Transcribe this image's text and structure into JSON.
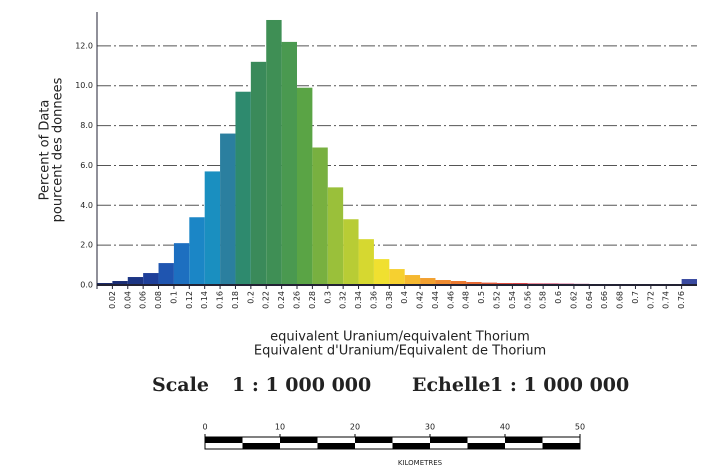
{
  "chart_data": {
    "type": "histogram",
    "y_label_lines": [
      "Percent of Data",
      "pourcent des donnees"
    ],
    "x_label_lines": [
      "equivalent Uranium/equivalent Thorium",
      "Equivalent d'Uranium/Equivalent de Thorium"
    ],
    "bins": [
      0,
      0.02,
      0.04,
      0.06,
      0.08,
      0.1,
      0.12,
      0.14,
      0.16,
      0.18,
      0.2,
      0.22,
      0.24,
      0.26,
      0.28,
      0.3,
      0.32,
      0.34,
      0.36,
      0.38,
      0.4,
      0.42,
      0.44,
      0.46,
      0.48,
      0.5,
      0.52,
      0.54,
      0.56,
      0.58,
      0.6,
      0.62,
      0.64,
      0.66,
      0.68,
      0.7,
      0.72,
      0.74,
      0.76,
      0.78
    ],
    "values": [
      0.1,
      0.2,
      0.4,
      0.6,
      1.1,
      2.1,
      3.4,
      5.7,
      7.6,
      9.7,
      11.2,
      13.3,
      12.2,
      9.9,
      6.9,
      4.9,
      3.3,
      2.3,
      1.3,
      0.8,
      0.5,
      0.35,
      0.25,
      0.2,
      0.15,
      0.12,
      0.1,
      0.1,
      0.08,
      0.08,
      0.07,
      0.06,
      0.05,
      0.05,
      0.05,
      0.04,
      0.04,
      0.04,
      0.3
    ],
    "colors": [
      "#1a2a6c",
      "#1a2d74",
      "#1c3584",
      "#1e3f9a",
      "#1f55b0",
      "#1d6fc0",
      "#1b86c6",
      "#1a8fc0",
      "#2b7f9f",
      "#2e8a6e",
      "#3a8a5a",
      "#3f8f55",
      "#4a9950",
      "#5aa445",
      "#78b040",
      "#9ac03a",
      "#b8cc35",
      "#d6d830",
      "#f0e030",
      "#f6d030",
      "#f5b830",
      "#f2a030",
      "#ee8a30",
      "#ea7830",
      "#e66a35",
      "#e25a3a",
      "#df4e40",
      "#dc4448",
      "#d83c55",
      "#d03a62",
      "#c43a70",
      "#b43c7c",
      "#a23e88",
      "#8e4090",
      "#7a4296",
      "#66449a",
      "#52469c",
      "#40489e",
      "#3a4aa0"
    ],
    "xlim": [
      0,
      0.78
    ],
    "xticks": [
      0.02,
      0.04,
      0.06,
      0.08,
      0.1,
      0.12,
      0.14,
      0.16,
      0.18,
      0.2,
      0.22,
      0.24,
      0.26,
      0.28,
      0.3,
      0.32,
      0.34,
      0.36,
      0.38,
      0.4,
      0.42,
      0.44,
      0.46,
      0.48,
      0.5,
      0.52,
      0.54,
      0.56,
      0.58,
      0.6,
      0.62,
      0.64,
      0.66,
      0.68,
      0.7,
      0.72,
      0.74,
      0.76
    ],
    "ylim": [
      0,
      13.5
    ],
    "yticks": [
      {
        "value": 0,
        "label": "0.0"
      },
      {
        "value": 2,
        "label": "2.0"
      },
      {
        "value": 4,
        "label": "4.0"
      },
      {
        "value": 6,
        "label": "6.0"
      },
      {
        "value": 8,
        "label": "8.0"
      },
      {
        "value": 10,
        "label": "10.0"
      },
      {
        "value": 12,
        "label": "12.0"
      }
    ],
    "grid": true
  },
  "scale": {
    "label_en": "Scale",
    "ratio_en": "1 : 1 000 000",
    "label_fr": "Echelle",
    "ratio_fr": "1 : 1 000 000"
  },
  "scale_bar": {
    "ticks": [
      0,
      10,
      20,
      30,
      40,
      50
    ],
    "unit": "KILOMETRES"
  }
}
